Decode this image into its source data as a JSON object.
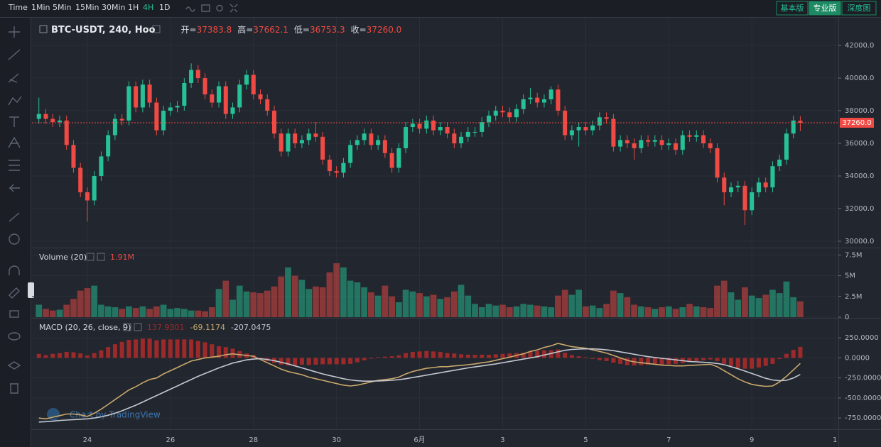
{
  "toolbar": {
    "intervals": [
      "Time",
      "1Min",
      "5Min",
      "15Min",
      "30Min",
      "1H",
      "4H",
      "1D"
    ],
    "active_interval": "4H",
    "views": [
      "基本版",
      "专业版",
      "深度图"
    ],
    "active_view": "专业版"
  },
  "watermark": "Chart by TradingView",
  "chart_data": [
    {
      "type": "candlestick",
      "title": "BTC-USDT, 240, Hoo",
      "ohlc_labels": [
        "开=",
        "高=",
        "低=",
        "收="
      ],
      "up_color": "#26c196",
      "down_color": "#ef4a43",
      "grid": true,
      "xlim": [
        -1,
        115.5
      ],
      "xticks": [
        {
          "value": 7,
          "label": "24"
        },
        {
          "value": 19,
          "label": "26"
        },
        {
          "value": 31,
          "label": "28"
        },
        {
          "value": 43,
          "label": "30"
        },
        {
          "value": 55,
          "label": "6月"
        },
        {
          "value": 67,
          "label": "3"
        },
        {
          "value": 79,
          "label": "5"
        },
        {
          "value": 91,
          "label": "7"
        },
        {
          "value": 103,
          "label": "9"
        },
        {
          "value": 115,
          "label": "1"
        }
      ],
      "ylim": [
        29650,
        43700
      ],
      "yticks": [
        {
          "value": 30000,
          "label": "30000.0"
        },
        {
          "value": 32000,
          "label": "32000.0"
        },
        {
          "value": 34000,
          "label": "34000.0"
        },
        {
          "value": 36000,
          "label": "36000.0"
        },
        {
          "value": 38000,
          "label": "38000.0"
        },
        {
          "value": 40000,
          "label": "40000.0"
        },
        {
          "value": 42000,
          "label": "42000.0"
        }
      ],
      "price_line": {
        "value": 37260,
        "label": "37260.0"
      },
      "open": [
        37500,
        37800,
        37500,
        37300,
        37400,
        35900,
        34500,
        33000,
        32500,
        34000,
        35200,
        36500,
        37500,
        37400,
        39500,
        38200,
        39600,
        38500,
        36800,
        38000,
        38200,
        38300,
        39700,
        40500,
        40000,
        39000,
        38500,
        39500,
        37800,
        38200,
        39600,
        40200,
        39000,
        38700,
        38000,
        36600,
        35500,
        36600,
        36000,
        36200,
        36600,
        36400,
        35000,
        34300,
        34200,
        34800,
        35900,
        36200,
        36600,
        35900,
        36200,
        35400,
        34500,
        35700,
        37000,
        37200,
        36900,
        37400,
        36800,
        37000,
        36600,
        36000,
        36400,
        36700,
        36700,
        37300,
        37700,
        38000,
        37900,
        37600,
        38100,
        38700,
        38800,
        38500,
        38700,
        39300,
        38000,
        36500,
        36800,
        37000,
        36800,
        37100,
        37600,
        37500,
        35800,
        36200,
        36000,
        35700,
        36200,
        36100,
        36200,
        35900,
        36000,
        35600,
        36500,
        36400,
        36500,
        36000,
        35700,
        33900,
        33000,
        33300,
        33400,
        31900,
        33000,
        33600,
        33300,
        34600,
        35000,
        36600,
        37383.8
      ],
      "high": [
        38800,
        38100,
        37800,
        37700,
        37700,
        36200,
        34800,
        33300,
        34300,
        35500,
        36800,
        37800,
        37800,
        39800,
        39800,
        39900,
        39900,
        38800,
        38300,
        38500,
        38600,
        40000,
        40900,
        40800,
        40300,
        39300,
        39800,
        39800,
        38500,
        39900,
        40500,
        40500,
        39300,
        39000,
        38300,
        36900,
        36900,
        36900,
        36500,
        36900,
        37300,
        36700,
        35300,
        34600,
        35100,
        36200,
        36500,
        36900,
        36900,
        36500,
        36500,
        35700,
        36000,
        37300,
        37500,
        37500,
        37700,
        37700,
        37300,
        37300,
        36900,
        36700,
        37000,
        37000,
        37600,
        38000,
        38300,
        38300,
        38200,
        38400,
        39000,
        39400,
        39100,
        39000,
        39500,
        39600,
        38300,
        37100,
        37300,
        37300,
        37400,
        37900,
        37900,
        37800,
        36500,
        36500,
        36300,
        36500,
        36500,
        36500,
        36500,
        36300,
        36300,
        36800,
        36800,
        36800,
        36800,
        36300,
        36000,
        34200,
        33600,
        33700,
        33700,
        33300,
        33900,
        33900,
        34900,
        35300,
        36900,
        37700,
        37662.1
      ],
      "low": [
        37200,
        37200,
        37000,
        37000,
        35600,
        34200,
        32700,
        31200,
        32200,
        33700,
        34900,
        36200,
        37100,
        37100,
        37900,
        37900,
        38200,
        36500,
        36500,
        37700,
        37900,
        38000,
        39400,
        39700,
        38700,
        38200,
        38200,
        37500,
        37500,
        37900,
        39300,
        38700,
        38400,
        37700,
        36300,
        35200,
        35200,
        35700,
        35700,
        35900,
        36100,
        34700,
        34000,
        33900,
        33900,
        34500,
        35600,
        35900,
        35600,
        35600,
        35100,
        34200,
        34200,
        35400,
        36700,
        36600,
        36600,
        36500,
        36500,
        36300,
        35700,
        35700,
        36100,
        36400,
        36400,
        37000,
        37400,
        37600,
        37300,
        37300,
        37800,
        38400,
        38200,
        38200,
        38400,
        37700,
        36200,
        36200,
        35800,
        36500,
        36500,
        36800,
        37200,
        35500,
        35500,
        35700,
        35000,
        35400,
        35800,
        35800,
        35600,
        35600,
        35300,
        35300,
        36100,
        36100,
        35700,
        35400,
        33600,
        32200,
        32700,
        33000,
        31000,
        31600,
        32700,
        33000,
        33000,
        34300,
        34700,
        36300,
        36753.3
      ],
      "close": [
        37800,
        37500,
        37300,
        37400,
        35900,
        34500,
        33000,
        32500,
        34000,
        35200,
        36500,
        37500,
        37400,
        39500,
        38200,
        39600,
        38500,
        36800,
        38000,
        38200,
        38300,
        39700,
        40500,
        40000,
        39000,
        38500,
        39500,
        37800,
        38200,
        39600,
        40200,
        39000,
        38700,
        38000,
        36600,
        35500,
        36600,
        36000,
        36200,
        36600,
        36400,
        35000,
        34300,
        34200,
        34800,
        35900,
        36200,
        36600,
        35900,
        36200,
        35400,
        34500,
        35700,
        37000,
        37200,
        36900,
        37400,
        36800,
        37000,
        36600,
        36000,
        36400,
        36700,
        36700,
        37300,
        37700,
        38000,
        37900,
        37600,
        38100,
        38700,
        38800,
        38500,
        38700,
        39300,
        38000,
        36500,
        36800,
        37000,
        36800,
        37100,
        37600,
        37500,
        35800,
        36200,
        36000,
        35700,
        36200,
        36100,
        36200,
        35900,
        36000,
        35600,
        36500,
        36400,
        36500,
        36000,
        35700,
        33900,
        33000,
        33300,
        33400,
        31900,
        33000,
        33600,
        33300,
        34600,
        35000,
        36600,
        37400,
        37260
      ]
    },
    {
      "type": "volume",
      "title": "Volume (20)",
      "grid": true,
      "label_color": "#ef4a43",
      "ylim": [
        0,
        8.3
      ],
      "yticks": [
        0,
        {
          "value": 2.5,
          "label": "2.5M"
        },
        {
          "value": 5,
          "label": "5M"
        },
        {
          "value": 7.5,
          "label": "7.5M"
        }
      ],
      "values": [
        1.5,
        1.0,
        0.8,
        0.9,
        1.5,
        2.2,
        3.2,
        3.5,
        3.8,
        1.5,
        1.3,
        1.2,
        1.0,
        1.3,
        1.1,
        1.3,
        1.0,
        1.3,
        1.5,
        1.0,
        1.1,
        1.0,
        0.8,
        0.8,
        0.7,
        1.2,
        3.4,
        4.4,
        2.1,
        3.8,
        3.1,
        3.0,
        2.9,
        3.2,
        3.7,
        4.9,
        6.0,
        5.0,
        4.5,
        3.4,
        3.7,
        3.6,
        5.4,
        6.5,
        6.0,
        4.4,
        4.2,
        3.6,
        3.0,
        2.6,
        3.8,
        2.5,
        1.8,
        3.3,
        3.1,
        2.9,
        2.5,
        2.7,
        2.2,
        2.4,
        3.1,
        3.9,
        2.6,
        1.6,
        1.2,
        1.6,
        1.4,
        1.5,
        1.2,
        1.3,
        1.6,
        1.5,
        1.4,
        1.3,
        1.2,
        2.6,
        3.3,
        2.7,
        3.3,
        1.3,
        1.4,
        1.1,
        1.6,
        3.2,
        2.9,
        2.4,
        1.5,
        1.3,
        1.2,
        1.0,
        1.2,
        1.3,
        1.0,
        1.2,
        1.6,
        1.3,
        1.2,
        1.1,
        3.8,
        4.4,
        3.0,
        2.1,
        3.6,
        2.6,
        2.3,
        2.7,
        3.3,
        2.9,
        4.3,
        2.4,
        1.91
      ],
      "value_labels": [
        null,
        null,
        null,
        null,
        null,
        null,
        null,
        null,
        null,
        null,
        null,
        null,
        null,
        null,
        null,
        null,
        null,
        null,
        null,
        null,
        null,
        null,
        null,
        null,
        null,
        null,
        null,
        null,
        null,
        null,
        null,
        null,
        null,
        null,
        null,
        null,
        null,
        null,
        null,
        null,
        null,
        null,
        null,
        null,
        null,
        null,
        null,
        null,
        null,
        null,
        null,
        null,
        null,
        null,
        null,
        null,
        null,
        null,
        null,
        null,
        null,
        null,
        null,
        null,
        null,
        null,
        null,
        null,
        null,
        null,
        null,
        null,
        null,
        null,
        null,
        null,
        null,
        null,
        null,
        null,
        null,
        null,
        null,
        null,
        null,
        null,
        null,
        null,
        null,
        null,
        null,
        null,
        null,
        null,
        null,
        null,
        null,
        null,
        null,
        null,
        null,
        null,
        null,
        null,
        null,
        null,
        null,
        null,
        null,
        null,
        "1.91M"
      ]
    },
    {
      "type": "macd",
      "title": "MACD (20, 26, close, 9)",
      "grid": true,
      "ylim": [
        -890,
        490
      ],
      "yticks": [
        {
          "value": -750,
          "label": "-750.0000"
        },
        {
          "value": -500,
          "label": "-500.0000"
        },
        {
          "value": -250,
          "label": "-250.0000"
        },
        {
          "value": 0,
          "label": "0.0000"
        },
        {
          "value": 250,
          "label": "250.0000"
        }
      ],
      "series": [
        {
          "kind": "bar",
          "color": "#9c2a2a",
          "values": [
            50,
            35,
            50,
            60,
            75,
            70,
            55,
            30,
            60,
            95,
            135,
            170,
            200,
            225,
            230,
            240,
            240,
            220,
            230,
            230,
            230,
            230,
            230,
            210,
            195,
            170,
            145,
            135,
            115,
            85,
            55,
            35,
            -10,
            -40,
            -65,
            -85,
            -95,
            -90,
            -85,
            -90,
            -85,
            -80,
            -80,
            -80,
            -80,
            -75,
            -55,
            -30,
            -10,
            8,
            15,
            20,
            32,
            60,
            75,
            80,
            85,
            80,
            75,
            60,
            55,
            45,
            40,
            37,
            40,
            38,
            45,
            50,
            55,
            60,
            65,
            80,
            85,
            95,
            95,
            105,
            65,
            35,
            20,
            8,
            -12,
            -28,
            -40,
            -60,
            -75,
            -90,
            -95,
            -90,
            -85,
            -85,
            -85,
            -80,
            -75,
            -65,
            -50,
            -40,
            -30,
            -20,
            -40,
            -75,
            -100,
            -125,
            -135,
            -135,
            -120,
            -100,
            -75,
            -15,
            50,
            100,
            137.9301
          ]
        },
        {
          "kind": "line",
          "color": "#c9a86b",
          "values": [
            -750,
            -760,
            -740,
            -720,
            -700,
            -700,
            -710,
            -730,
            -690,
            -640,
            -580,
            -520,
            -460,
            -400,
            -360,
            -310,
            -270,
            -250,
            -200,
            -160,
            -120,
            -80,
            -40,
            -20,
            0,
            10,
            20,
            40,
            50,
            40,
            30,
            20,
            -20,
            -60,
            -100,
            -140,
            -170,
            -190,
            -210,
            -240,
            -260,
            -280,
            -300,
            -320,
            -340,
            -350,
            -340,
            -320,
            -300,
            -280,
            -270,
            -260,
            -240,
            -200,
            -170,
            -150,
            -130,
            -120,
            -110,
            -110,
            -100,
            -95,
            -85,
            -75,
            -60,
            -50,
            -30,
            -10,
            10,
            30,
            50,
            80,
            100,
            130,
            150,
            180,
            160,
            140,
            130,
            120,
            100,
            80,
            60,
            30,
            0,
            -30,
            -50,
            -60,
            -70,
            -80,
            -90,
            -95,
            -100,
            -100,
            -95,
            -90,
            -85,
            -80,
            -110,
            -160,
            -210,
            -260,
            -300,
            -330,
            -345,
            -355,
            -350,
            -300,
            -230,
            -150,
            -69.1174
          ]
        },
        {
          "kind": "line",
          "color": "#c3c7d0",
          "values": [
            -800,
            -795,
            -790,
            -780,
            -775,
            -770,
            -765,
            -760,
            -750,
            -735,
            -715,
            -690,
            -660,
            -625,
            -590,
            -550,
            -510,
            -470,
            -430,
            -390,
            -350,
            -310,
            -270,
            -230,
            -195,
            -160,
            -125,
            -95,
            -65,
            -45,
            -25,
            -15,
            -10,
            -20,
            -35,
            -55,
            -75,
            -100,
            -125,
            -150,
            -175,
            -200,
            -220,
            -240,
            -260,
            -275,
            -285,
            -290,
            -290,
            -288,
            -285,
            -280,
            -272,
            -260,
            -245,
            -230,
            -215,
            -200,
            -185,
            -170,
            -155,
            -140,
            -125,
            -112,
            -100,
            -88,
            -75,
            -60,
            -45,
            -30,
            -15,
            0,
            15,
            35,
            55,
            75,
            95,
            105,
            110,
            112,
            112,
            108,
            100,
            90,
            75,
            60,
            45,
            30,
            15,
            5,
            -5,
            -15,
            -25,
            -35,
            -45,
            -50,
            -55,
            -60,
            -70,
            -85,
            -110,
            -135,
            -165,
            -195,
            -225,
            -255,
            -275,
            -285,
            -280,
            -250,
            -207.0475
          ]
        }
      ]
    }
  ]
}
